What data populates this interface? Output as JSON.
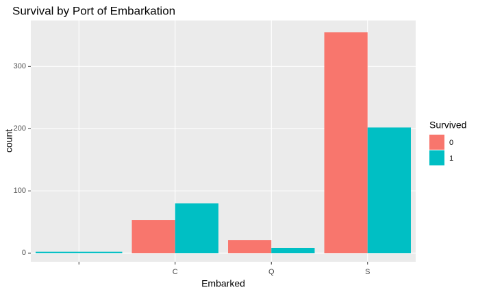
{
  "chart_data": {
    "type": "bar",
    "title": "Survival by Port of Embarkation",
    "x_label": "Embarked",
    "y_label": "count",
    "categories": [
      null,
      "C",
      "Q",
      "S"
    ],
    "series": [
      {
        "name": "0",
        "color": "#F8766D",
        "values": [
          null,
          53,
          21,
          355
        ]
      },
      {
        "name": "1",
        "color": "#00BFC4",
        "values": [
          2,
          80,
          8,
          202
        ]
      }
    ],
    "legend_title": "Survived",
    "ylim": [
      -14,
      374
    ],
    "yticks": [
      0,
      100,
      200,
      300
    ],
    "grid": true,
    "legend": "right"
  }
}
